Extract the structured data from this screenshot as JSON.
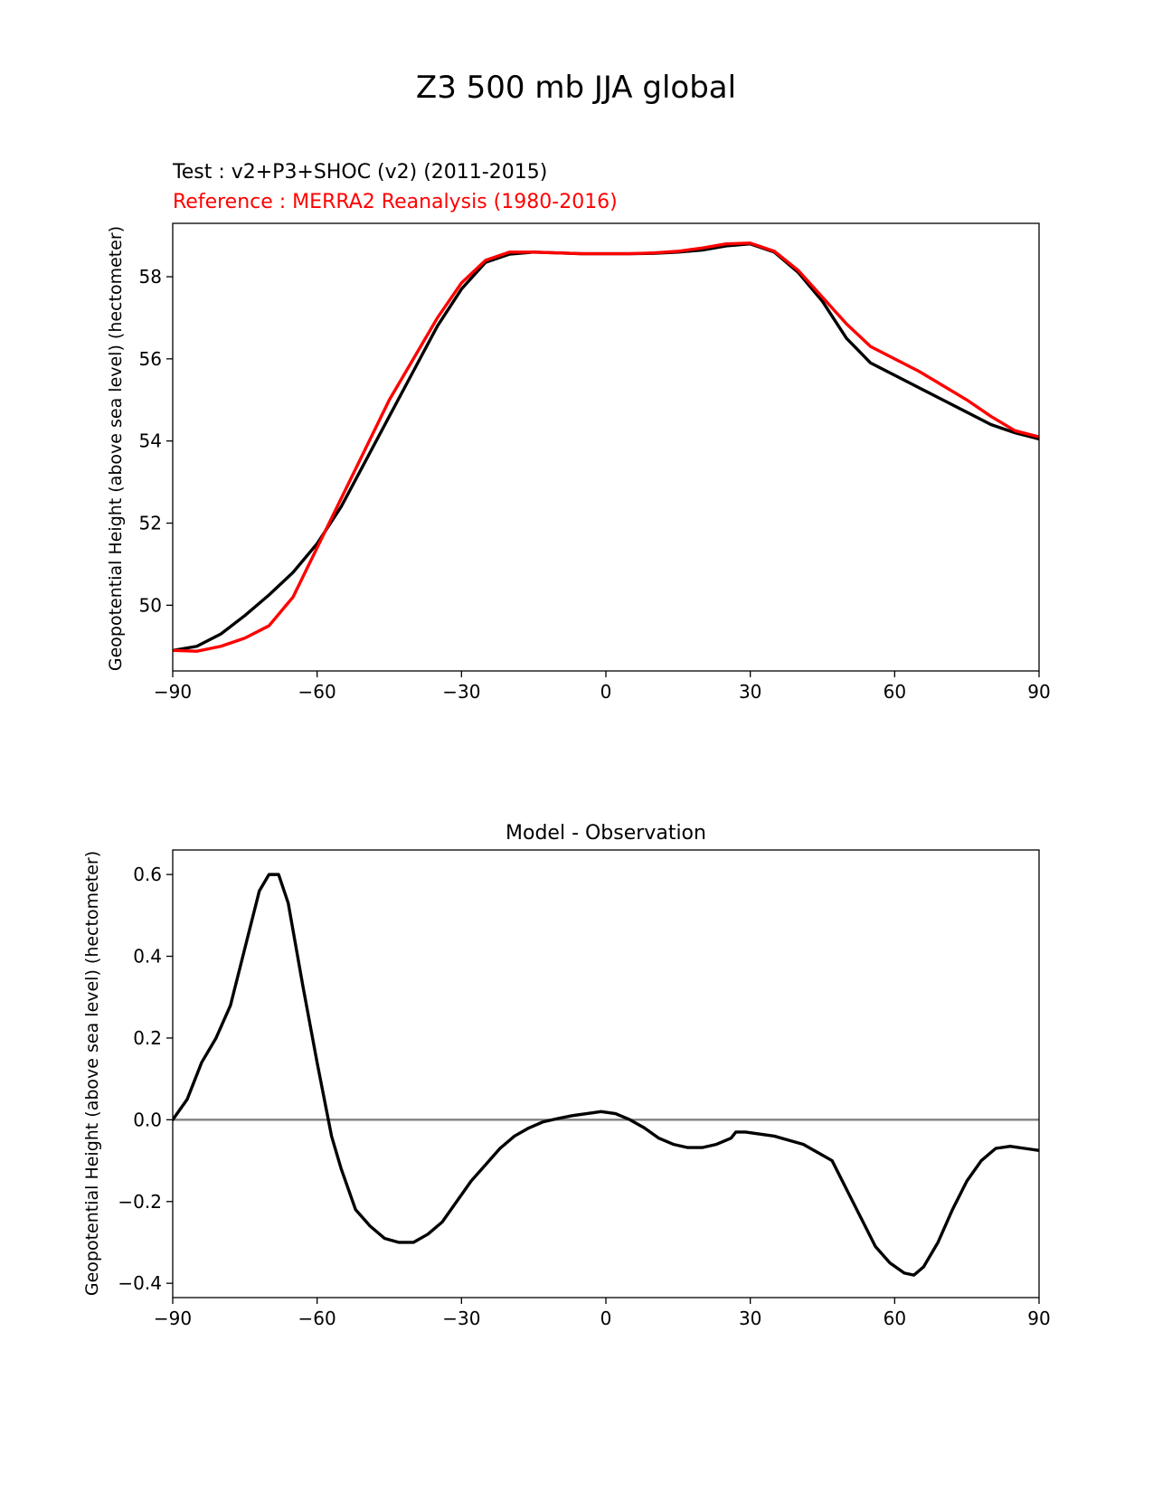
{
  "figure": {
    "title": "Z3 500 mb JJA global"
  },
  "chart_data": [
    {
      "type": "line",
      "test_label": "Test : v2+P3+SHOC (v2) (2011-2015)",
      "reference_label": "Reference : MERRA2 Reanalysis (1980-2016)",
      "xlabel": "",
      "ylabel": "Geopotential Height (above sea level) (hectometer)",
      "xlim": [
        -90,
        90
      ],
      "ylim": [
        48.4,
        59.3
      ],
      "xticks": [
        -90,
        -60,
        -30,
        0,
        30,
        60,
        90
      ],
      "xtick_labels": [
        "−90",
        "−60",
        "−30",
        "0",
        "30",
        "60",
        "90"
      ],
      "yticks": [
        50,
        52,
        54,
        56,
        58
      ],
      "ytick_labels": [
        "50",
        "52",
        "54",
        "56",
        "58"
      ],
      "grid": false,
      "x": [
        -90,
        -85,
        -80,
        -75,
        -70,
        -65,
        -60,
        -55,
        -50,
        -45,
        -40,
        -35,
        -30,
        -25,
        -20,
        -15,
        -10,
        -5,
        0,
        5,
        10,
        15,
        20,
        25,
        30,
        35,
        40,
        45,
        50,
        55,
        60,
        65,
        70,
        75,
        80,
        85,
        90
      ],
      "series": [
        {
          "role": "test",
          "color": "#000000",
          "values": [
            48.9,
            49.0,
            49.3,
            49.75,
            50.25,
            50.8,
            51.5,
            52.4,
            53.5,
            54.6,
            55.7,
            56.8,
            57.7,
            58.35,
            58.55,
            58.6,
            58.58,
            58.56,
            58.56,
            58.56,
            58.57,
            58.6,
            58.65,
            58.75,
            58.8,
            58.6,
            58.1,
            57.4,
            56.5,
            55.9,
            55.6,
            55.3,
            55.0,
            54.7,
            54.4,
            54.2,
            54.05
          ]
        },
        {
          "role": "reference",
          "color": "#ff0000",
          "values": [
            48.9,
            48.88,
            49.0,
            49.2,
            49.5,
            50.2,
            51.4,
            52.6,
            53.8,
            55.0,
            56.0,
            57.0,
            57.85,
            58.4,
            58.6,
            58.6,
            58.58,
            58.56,
            58.56,
            58.56,
            58.58,
            58.62,
            58.7,
            58.8,
            58.82,
            58.62,
            58.15,
            57.5,
            56.85,
            56.3,
            56.0,
            55.7,
            55.35,
            55.0,
            54.6,
            54.25,
            54.1
          ]
        }
      ]
    },
    {
      "type": "line",
      "title": "Model - Observation",
      "xlabel": "",
      "ylabel": "Geopotential Height (above sea level) (hectometer)",
      "xlim": [
        -90,
        90
      ],
      "ylim": [
        -0.435,
        0.66
      ],
      "xticks": [
        -90,
        -60,
        -30,
        0,
        30,
        60,
        90
      ],
      "xtick_labels": [
        "−90",
        "−60",
        "−30",
        "0",
        "30",
        "60",
        "90"
      ],
      "yticks": [
        -0.4,
        -0.2,
        0.0,
        0.2,
        0.4,
        0.6
      ],
      "ytick_labels": [
        "−0.4",
        "−0.2",
        "0.0",
        "0.2",
        "0.4",
        "0.6"
      ],
      "grid": false,
      "zero_line_color": "#808080",
      "x": [
        -90,
        -87,
        -84,
        -81,
        -78,
        -75,
        -72,
        -70,
        -68,
        -66,
        -63,
        -60,
        -57,
        -55,
        -52,
        -49,
        -46,
        -43,
        -40,
        -37,
        -34,
        -31,
        -28,
        -25,
        -22,
        -19,
        -16,
        -13,
        -10,
        -7,
        -4,
        -1,
        2,
        5,
        8,
        11,
        14,
        17,
        20,
        23,
        26,
        27,
        29,
        32,
        35,
        38,
        41,
        44,
        47,
        50,
        53,
        56,
        59,
        62,
        64,
        66,
        69,
        72,
        75,
        78,
        81,
        84,
        87,
        90
      ],
      "series": [
        {
          "role": "difference",
          "color": "#000000",
          "values": [
            0.0,
            0.05,
            0.14,
            0.2,
            0.28,
            0.42,
            0.56,
            0.6,
            0.6,
            0.53,
            0.33,
            0.14,
            -0.04,
            -0.12,
            -0.22,
            -0.26,
            -0.29,
            -0.3,
            -0.3,
            -0.28,
            -0.25,
            -0.2,
            -0.15,
            -0.11,
            -0.07,
            -0.04,
            -0.02,
            -0.005,
            0.003,
            0.01,
            0.015,
            0.02,
            0.015,
            0.0,
            -0.02,
            -0.045,
            -0.06,
            -0.068,
            -0.068,
            -0.06,
            -0.045,
            -0.03,
            -0.03,
            -0.035,
            -0.04,
            -0.05,
            -0.06,
            -0.08,
            -0.1,
            -0.17,
            -0.24,
            -0.31,
            -0.35,
            -0.375,
            -0.38,
            -0.36,
            -0.3,
            -0.22,
            -0.15,
            -0.1,
            -0.07,
            -0.065,
            -0.07,
            -0.075
          ]
        }
      ]
    }
  ]
}
